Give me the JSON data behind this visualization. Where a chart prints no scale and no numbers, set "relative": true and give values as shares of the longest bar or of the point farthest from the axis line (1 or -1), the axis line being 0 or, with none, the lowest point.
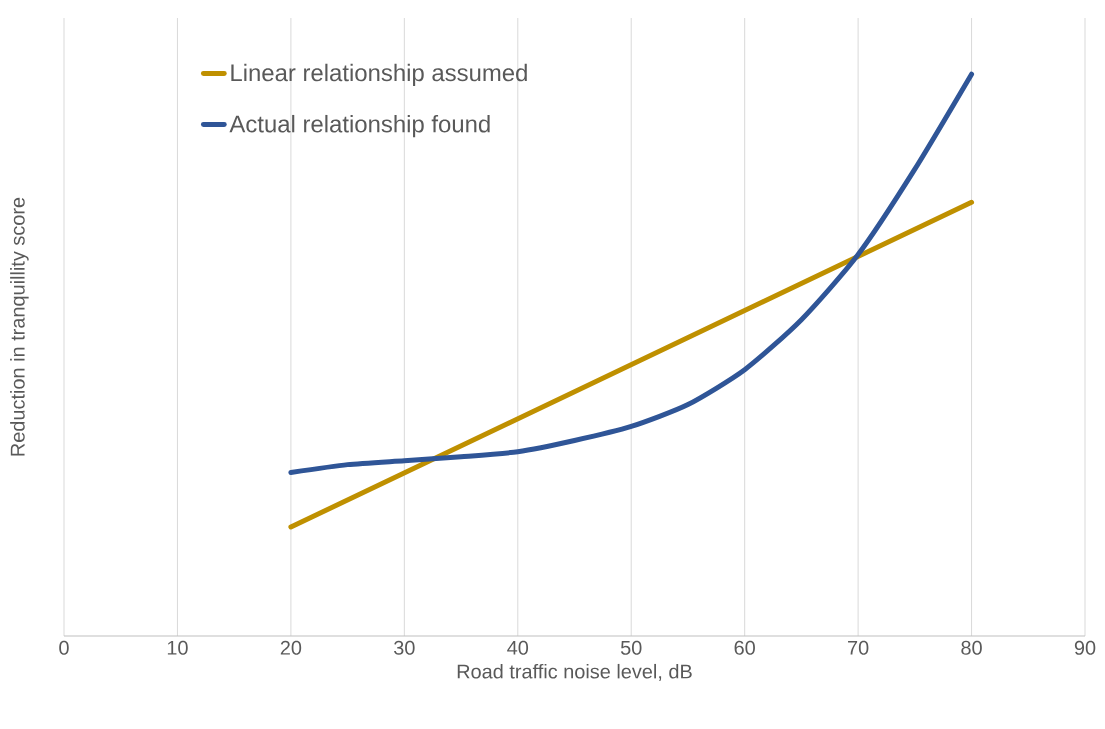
{
  "chart_data": {
    "type": "line",
    "relative": true,
    "xlabel": "Road traffic noise level, dB",
    "ylabel": "Reduction in tranquillity score",
    "x": [
      20,
      25,
      30,
      35,
      40,
      45,
      50,
      55,
      60,
      65,
      70,
      75,
      80
    ],
    "xlim": [
      0,
      90
    ],
    "xticks": [
      0,
      10,
      20,
      30,
      40,
      50,
      60,
      70,
      80,
      90
    ],
    "grid": "x",
    "legend": "top left",
    "marker": "none",
    "line_style": "solid",
    "series": [
      {
        "name": "Linear relationship assumed",
        "color": "#bf9000",
        "x": [
          20,
          80
        ],
        "values": [
          0.194,
          0.772
        ]
      },
      {
        "name": "Actual relationship found",
        "color": "#2f5597",
        "values": [
          0.291,
          0.305,
          0.312,
          0.319,
          0.328,
          0.348,
          0.373,
          0.412,
          0.474,
          0.563,
          0.679,
          0.831,
          1.0
        ]
      }
    ]
  }
}
